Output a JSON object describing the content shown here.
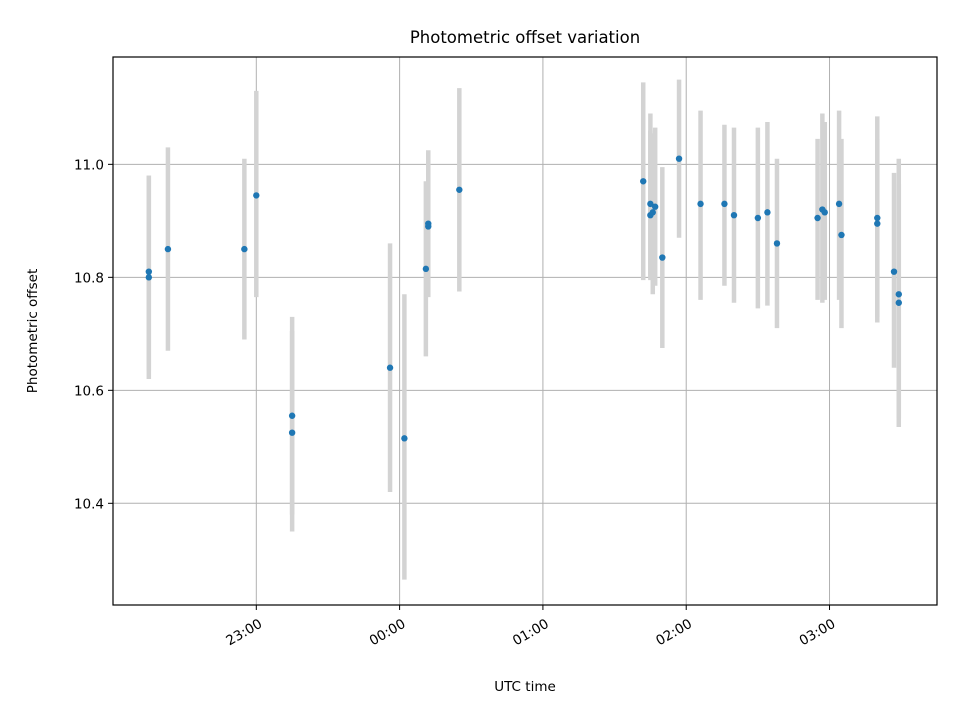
{
  "chart_data": {
    "type": "scatter",
    "title": "Photometric offset variation",
    "xlabel": "UTC time",
    "ylabel": "Photometric offset",
    "x_unit": "UTC time",
    "xlim": [
      "22:00",
      "03:45"
    ],
    "ylim": [
      10.22,
      11.19
    ],
    "grid": true,
    "x_ticks": [
      "23:00",
      "00:00",
      "01:00",
      "02:00",
      "03:00"
    ],
    "y_ticks": [
      10.4,
      10.6,
      10.8,
      11.0
    ],
    "y_tick_labels": [
      "10.4",
      "10.6",
      "10.8",
      "11.0"
    ],
    "marker_color": "#1f77b4",
    "errorbar_color": "#d3d3d3",
    "series": [
      {
        "points": [
          {
            "x": "22:15",
            "y": 10.81,
            "yerr_low": 10.635,
            "yerr_high": 10.98
          },
          {
            "x": "22:15",
            "y": 10.8,
            "yerr_low": 10.62,
            "yerr_high": 10.98
          },
          {
            "x": "22:23",
            "y": 10.85,
            "yerr_low": 10.67,
            "yerr_high": 11.03
          },
          {
            "x": "22:55",
            "y": 10.85,
            "yerr_low": 10.69,
            "yerr_high": 11.01
          },
          {
            "x": "23:00",
            "y": 10.945,
            "yerr_low": 10.765,
            "yerr_high": 11.13
          },
          {
            "x": "23:15",
            "y": 10.555,
            "yerr_low": 10.38,
            "yerr_high": 10.73
          },
          {
            "x": "23:15",
            "y": 10.525,
            "yerr_low": 10.35,
            "yerr_high": 10.705
          },
          {
            "x": "23:56",
            "y": 10.64,
            "yerr_low": 10.42,
            "yerr_high": 10.86
          },
          {
            "x": "00:02",
            "y": 10.515,
            "yerr_low": 10.265,
            "yerr_high": 10.77
          },
          {
            "x": "00:11",
            "y": 10.815,
            "yerr_low": 10.66,
            "yerr_high": 10.97
          },
          {
            "x": "00:12",
            "y": 10.89,
            "yerr_low": 10.765,
            "yerr_high": 11.025
          },
          {
            "x": "00:12",
            "y": 10.895,
            "yerr_low": 10.77,
            "yerr_high": 11.02
          },
          {
            "x": "00:25",
            "y": 10.955,
            "yerr_low": 10.775,
            "yerr_high": 11.135
          },
          {
            "x": "01:42",
            "y": 10.97,
            "yerr_low": 10.795,
            "yerr_high": 11.145
          },
          {
            "x": "01:45",
            "y": 10.93,
            "yerr_low": 10.8,
            "yerr_high": 11.09
          },
          {
            "x": "01:45",
            "y": 10.91,
            "yerr_low": 10.795,
            "yerr_high": 11.06
          },
          {
            "x": "01:46",
            "y": 10.915,
            "yerr_low": 10.77,
            "yerr_high": 11.055
          },
          {
            "x": "01:47",
            "y": 10.925,
            "yerr_low": 10.785,
            "yerr_high": 11.065
          },
          {
            "x": "01:50",
            "y": 10.835,
            "yerr_low": 10.675,
            "yerr_high": 10.995
          },
          {
            "x": "01:57",
            "y": 11.01,
            "yerr_low": 10.87,
            "yerr_high": 11.15
          },
          {
            "x": "02:06",
            "y": 10.93,
            "yerr_low": 10.76,
            "yerr_high": 11.095
          },
          {
            "x": "02:16",
            "y": 10.93,
            "yerr_low": 10.785,
            "yerr_high": 11.07
          },
          {
            "x": "02:20",
            "y": 10.91,
            "yerr_low": 10.755,
            "yerr_high": 11.065
          },
          {
            "x": "02:30",
            "y": 10.905,
            "yerr_low": 10.745,
            "yerr_high": 11.065
          },
          {
            "x": "02:34",
            "y": 10.915,
            "yerr_low": 10.75,
            "yerr_high": 11.075
          },
          {
            "x": "02:38",
            "y": 10.86,
            "yerr_low": 10.71,
            "yerr_high": 11.01
          },
          {
            "x": "02:55",
            "y": 10.905,
            "yerr_low": 10.76,
            "yerr_high": 11.045
          },
          {
            "x": "02:57",
            "y": 10.92,
            "yerr_low": 10.755,
            "yerr_high": 11.09
          },
          {
            "x": "02:58",
            "y": 10.915,
            "yerr_low": 10.76,
            "yerr_high": 11.075
          },
          {
            "x": "03:04",
            "y": 10.93,
            "yerr_low": 10.76,
            "yerr_high": 11.095
          },
          {
            "x": "03:05",
            "y": 10.875,
            "yerr_low": 10.71,
            "yerr_high": 11.045
          },
          {
            "x": "03:20",
            "y": 10.905,
            "yerr_low": 10.73,
            "yerr_high": 11.085
          },
          {
            "x": "03:20",
            "y": 10.895,
            "yerr_low": 10.72,
            "yerr_high": 11.045
          },
          {
            "x": "03:27",
            "y": 10.81,
            "yerr_low": 10.64,
            "yerr_high": 10.985
          },
          {
            "x": "03:29",
            "y": 10.77,
            "yerr_low": 10.535,
            "yerr_high": 11.01
          },
          {
            "x": "03:29",
            "y": 10.755,
            "yerr_low": 10.55,
            "yerr_high": 10.965
          }
        ]
      }
    ]
  }
}
